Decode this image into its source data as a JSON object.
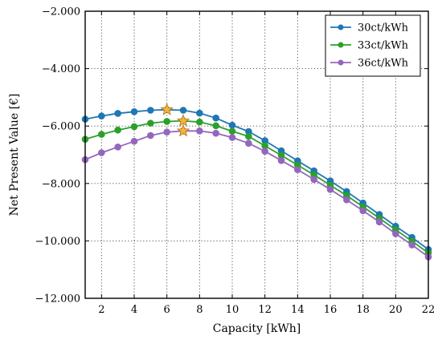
{
  "chart_data": {
    "type": "line",
    "xlabel": "Capacity [kWh]",
    "ylabel": "Net Present Value [€]",
    "xlim": [
      1,
      22
    ],
    "ylim": [
      -12000,
      -2000
    ],
    "grid": true,
    "grid_style": "dotted",
    "legend_position": "top-right",
    "x_ticks": [
      2,
      4,
      6,
      8,
      10,
      12,
      14,
      16,
      18,
      20,
      22
    ],
    "y_ticks": [
      -2000,
      -4000,
      -6000,
      -8000,
      -10000,
      -12000
    ],
    "x_tick_labels": [
      "2",
      "4",
      "6",
      "8",
      "10",
      "12",
      "14",
      "16",
      "18",
      "20",
      "22"
    ],
    "y_tick_labels": [
      "−2.000",
      "−4.000",
      "−6.000",
      "−8.000",
      "−10.000",
      "−12.000"
    ],
    "x": [
      1,
      2,
      3,
      4,
      5,
      6,
      7,
      8,
      9,
      10,
      11,
      12,
      13,
      14,
      15,
      16,
      17,
      18,
      19,
      20,
      21,
      22
    ],
    "series": [
      {
        "name": "30ct/kWh",
        "color": "#1f77b4",
        "values": [
          -5760,
          -5650,
          -5560,
          -5500,
          -5450,
          -5430,
          -5450,
          -5550,
          -5720,
          -5970,
          -6190,
          -6510,
          -6860,
          -7210,
          -7560,
          -7910,
          -8280,
          -8680,
          -9080,
          -9490,
          -9880,
          -10300
        ],
        "optimum_x": 6
      },
      {
        "name": "33ct/kWh",
        "color": "#2ca02c",
        "values": [
          -6460,
          -6290,
          -6140,
          -6020,
          -5900,
          -5840,
          -5820,
          -5860,
          -5990,
          -6180,
          -6360,
          -6690,
          -7020,
          -7360,
          -7700,
          -8060,
          -8420,
          -8810,
          -9210,
          -9610,
          -10010,
          -10420
        ],
        "optimum_x": 7
      },
      {
        "name": "36ct/kWh",
        "color": "#9467bd",
        "values": [
          -7170,
          -6930,
          -6730,
          -6530,
          -6330,
          -6210,
          -6170,
          -6170,
          -6250,
          -6400,
          -6600,
          -6880,
          -7200,
          -7520,
          -7860,
          -8210,
          -8570,
          -8950,
          -9340,
          -9750,
          -10140,
          -10560
        ],
        "optimum_x": 7
      }
    ],
    "optimum_marker": {
      "shape": "star",
      "color": "#f2b43c"
    }
  }
}
